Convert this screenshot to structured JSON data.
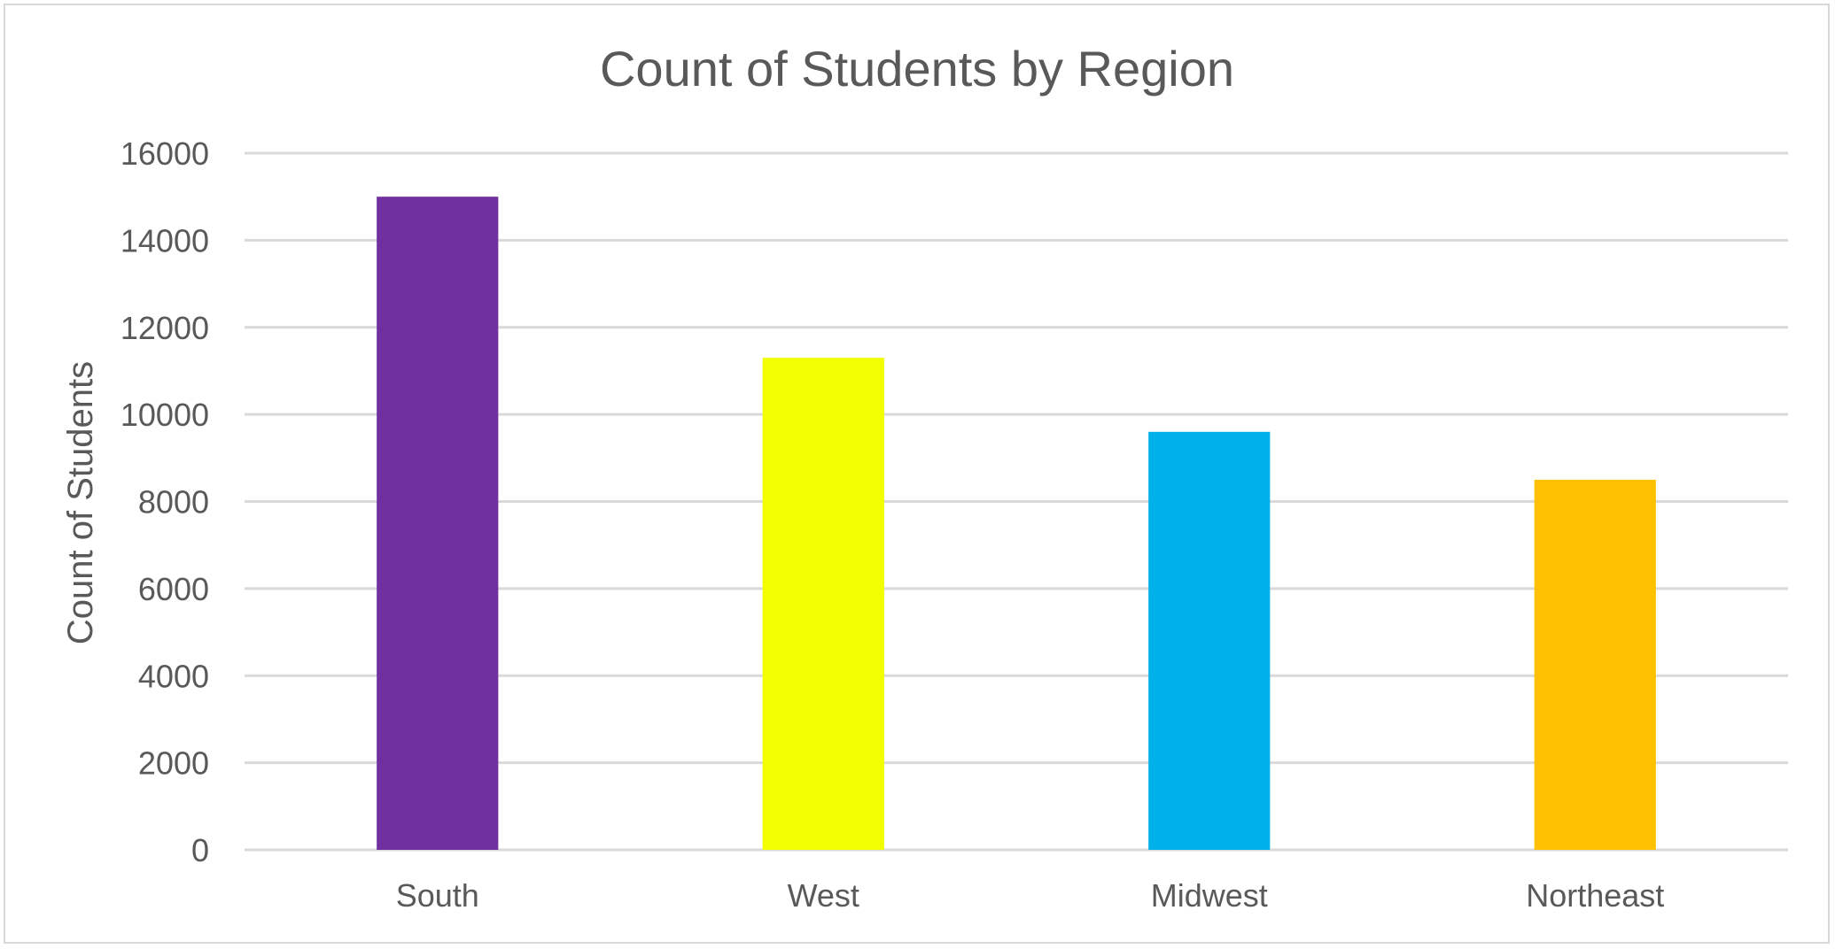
{
  "chart_data": {
    "type": "bar",
    "title": "Count  of Students by Region",
    "xlabel": "",
    "ylabel": "Count of Students",
    "categories": [
      "South",
      "West",
      "Midwest",
      "Northeast"
    ],
    "values": [
      15000,
      11300,
      9600,
      8500
    ],
    "bar_colors": [
      "#7030A0",
      "#F2FF00",
      "#00B0E8",
      "#FFC000"
    ],
    "ylim": [
      0,
      16000
    ],
    "yticks": [
      "0",
      "2000",
      "4000",
      "6000",
      "8000",
      "10000",
      "12000",
      "14000",
      "16000"
    ],
    "grid": true,
    "legend": "none"
  }
}
